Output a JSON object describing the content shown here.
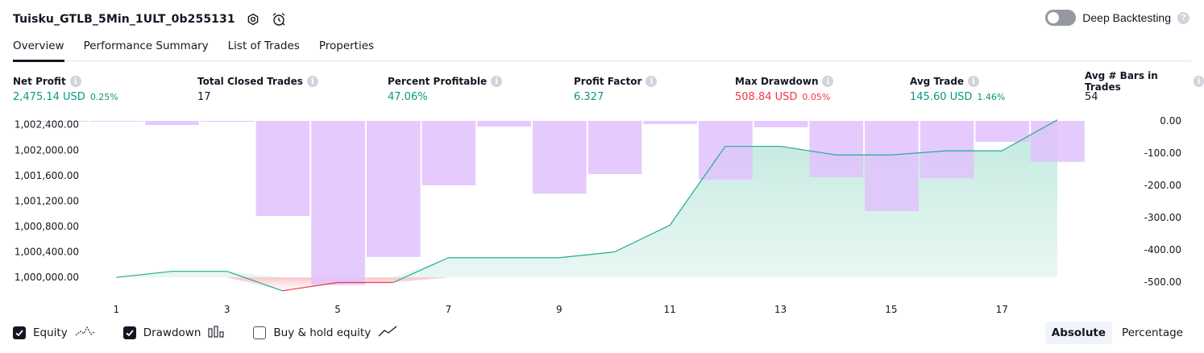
{
  "header": {
    "strategy_name": "Tuisku_GTLB_5Min_1ULT_0b255131",
    "icons": [
      "gear-icon",
      "alarm-clock-icon"
    ],
    "deep_backtesting_label": "Deep Backtesting",
    "deep_backtesting_enabled": false,
    "help_glyph": "?"
  },
  "tabs": [
    {
      "label": "Overview",
      "active": true
    },
    {
      "label": "Performance Summary",
      "active": false
    },
    {
      "label": "List of Trades",
      "active": false
    },
    {
      "label": "Properties",
      "active": false
    }
  ],
  "stats": {
    "info_glyph": "i",
    "net_profit": {
      "label": "Net Profit",
      "value": "2,475.14 USD",
      "percent": "0.25%"
    },
    "total_closed_trades": {
      "label": "Total Closed Trades",
      "value": "17"
    },
    "percent_profitable": {
      "label": "Percent Profitable",
      "value": "47.06%"
    },
    "profit_factor": {
      "label": "Profit Factor",
      "value": "6.327"
    },
    "max_drawdown": {
      "label": "Max Drawdown",
      "value": "508.84 USD",
      "percent": "0.05%"
    },
    "avg_trade": {
      "label": "Avg Trade",
      "value": "145.60 USD",
      "percent": "1.46%"
    },
    "avg_bars": {
      "label": "Avg # Bars in Trades",
      "value": "54"
    }
  },
  "colors": {
    "profit": "#089981",
    "loss": "#f23645",
    "equity_line": "#22ab94",
    "equity_fill": "#d6f0e9",
    "drawdown_bars": "#e0c2fd"
  },
  "chart_data": {
    "type": "area",
    "x_ticks": [
      "1",
      "3",
      "5",
      "7",
      "9",
      "11",
      "13",
      "15",
      "17"
    ],
    "y_left_ticks": [
      "1,002,400.00",
      "1,002,000.00",
      "1,001,600.00",
      "1,001,200.00",
      "1,000,800.00",
      "1,000,400.00",
      "1,000,000.00"
    ],
    "y_right_ticks": [
      "0.00",
      "-100.00",
      "-200.00",
      "-300.00",
      "-400.00",
      "-500.00"
    ],
    "ylim_left": [
      999800,
      1002460
    ],
    "ylim_right": [
      -525,
      0
    ],
    "xlim": [
      0.5,
      19.5
    ],
    "series": [
      {
        "name": "Equity",
        "axis": "left",
        "x": [
          1,
          2,
          3,
          4,
          5,
          6,
          7,
          8,
          9,
          10,
          11,
          12,
          13,
          14,
          15,
          16,
          17,
          18
        ],
        "values": [
          1000000,
          1000095,
          1000095,
          999790,
          999920,
          999920,
          1000310,
          1000310,
          1000310,
          1000400,
          1000820,
          1002060,
          1002060,
          1001925,
          1001925,
          1001990,
          1001990,
          1002475
        ]
      },
      {
        "name": "Drawdown",
        "axis": "right",
        "x": [
          0,
          1,
          2,
          3,
          4,
          5,
          6,
          7,
          8,
          9,
          10,
          11,
          12,
          13,
          14,
          15,
          16,
          17,
          18
        ],
        "values": [
          -1,
          0,
          -13,
          -3,
          -295,
          -509,
          -422,
          -200,
          -18,
          -226,
          -165,
          -10,
          -182,
          -20,
          -175,
          -280,
          -178,
          -65,
          -127
        ]
      }
    ],
    "grid": false,
    "legend": "bottom-left"
  },
  "legend": {
    "items": [
      {
        "label": "Equity",
        "checked": true,
        "icon": "equity-line-icon"
      },
      {
        "label": "Drawdown",
        "checked": true,
        "icon": "drawdown-bars-icon"
      },
      {
        "label": "Buy & hold equity",
        "checked": false,
        "icon": "buy-hold-line-icon"
      }
    ]
  },
  "modes": {
    "absolute": "Absolute",
    "percentage": "Percentage",
    "active": "Absolute"
  }
}
